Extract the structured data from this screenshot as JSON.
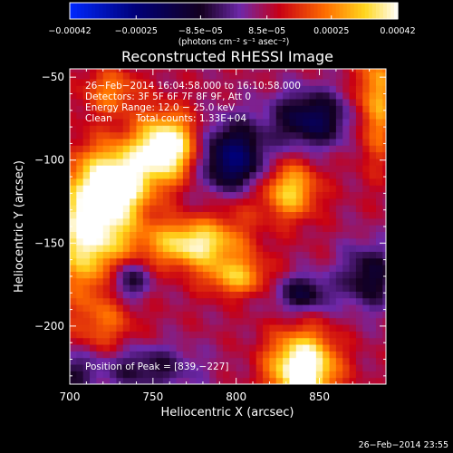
{
  "chart_data": {
    "type": "heatmap",
    "title": "Reconstructed RHESSI Image",
    "xlabel": "Heliocentric X (arcsec)",
    "ylabel": "Heliocentric Y (arcsec)",
    "xlim": [
      700,
      890
    ],
    "ylim": [
      -235,
      -45
    ],
    "x_ticks": [
      {
        "value": 700,
        "label": "700"
      },
      {
        "value": 750,
        "label": "750"
      },
      {
        "value": 800,
        "label": "800"
      },
      {
        "value": 850,
        "label": "850"
      }
    ],
    "y_ticks": [
      {
        "value": -50,
        "label": "−50"
      },
      {
        "value": -100,
        "label": "−100"
      },
      {
        "value": -150,
        "label": "−150"
      },
      {
        "value": -200,
        "label": "−200"
      }
    ],
    "colorbar": {
      "min": -0.00042,
      "max": 0.00042,
      "unit_label": "(photons cm⁻² s⁻¹ asec⁻²)",
      "ticks": [
        {
          "value": -0.00042,
          "label": "−0.00042"
        },
        {
          "value": -0.00025,
          "label": "−0.00025"
        },
        {
          "value": -8.5e-05,
          "label": "−8.5e−05"
        },
        {
          "value": 8.5e-05,
          "label": "8.5e−05"
        },
        {
          "value": 0.00025,
          "label": "0.00025"
        },
        {
          "value": 0.00042,
          "label": "0.00042"
        }
      ]
    },
    "annotations": {
      "time_range": "26−Feb−2014 16:04:58.000 to 16:10:58.000",
      "detectors": "Detectors: 3F 5F 6F 7F 8F 9F, Att 0",
      "energy_range": "Energy Range: 12.0 − 25.0 keV",
      "algorithm": "Clean",
      "total_counts": "Total counts: 1.33E+04",
      "peak": "Position of Peak = [839,−227]"
    },
    "peak_position": [
      839,
      -227
    ],
    "sources": [
      {
        "x": 840,
        "y": -225,
        "sx": 14,
        "sy": 15,
        "amp": 0.00042
      },
      {
        "x": 758,
        "y": -92,
        "sx": 13,
        "sy": 14,
        "amp": 0.0004
      },
      {
        "x": 712,
        "y": -140,
        "sx": 18,
        "sy": 26,
        "amp": 0.00036
      },
      {
        "x": 730,
        "y": -112,
        "sx": 14,
        "sy": 15,
        "amp": 0.0003
      },
      {
        "x": 775,
        "y": -150,
        "sx": 20,
        "sy": 10,
        "amp": 0.00032
      },
      {
        "x": 800,
        "y": -170,
        "sx": 14,
        "sy": 8,
        "amp": 0.00022
      },
      {
        "x": 832,
        "y": -118,
        "sx": 12,
        "sy": 12,
        "amp": 0.00026
      },
      {
        "x": 885,
        "y": -62,
        "sx": 9,
        "sy": 26,
        "amp": 0.00022
      },
      {
        "x": 725,
        "y": -58,
        "sx": 12,
        "sy": 10,
        "amp": 0.00016
      },
      {
        "x": 720,
        "y": -200,
        "sx": 14,
        "sy": 13,
        "amp": 0.00012
      },
      {
        "x": 800,
        "y": -125,
        "sx": 11,
        "sy": 11,
        "amp": 0.0001
      },
      {
        "x": 798,
        "y": -100,
        "sx": 14,
        "sy": 16,
        "amp": -0.00032
      },
      {
        "x": 845,
        "y": -75,
        "sx": 16,
        "sy": 12,
        "amp": -0.00026
      },
      {
        "x": 735,
        "y": -172,
        "sx": 9,
        "sy": 9,
        "amp": -0.00022
      },
      {
        "x": 880,
        "y": -170,
        "sx": 12,
        "sy": 14,
        "amp": -0.0002
      },
      {
        "x": 840,
        "y": -180,
        "sx": 12,
        "sy": 8,
        "amp": -0.0002
      },
      {
        "x": 745,
        "y": -225,
        "sx": 22,
        "sy": 10,
        "amp": -0.00016
      },
      {
        "x": 700,
        "y": -228,
        "sx": 10,
        "sy": 10,
        "amp": -0.00014
      }
    ]
  },
  "footer": {
    "timestamp": "26−Feb−2014 23:55"
  },
  "colors": {
    "background": "#000000",
    "text": "#ffffff"
  }
}
